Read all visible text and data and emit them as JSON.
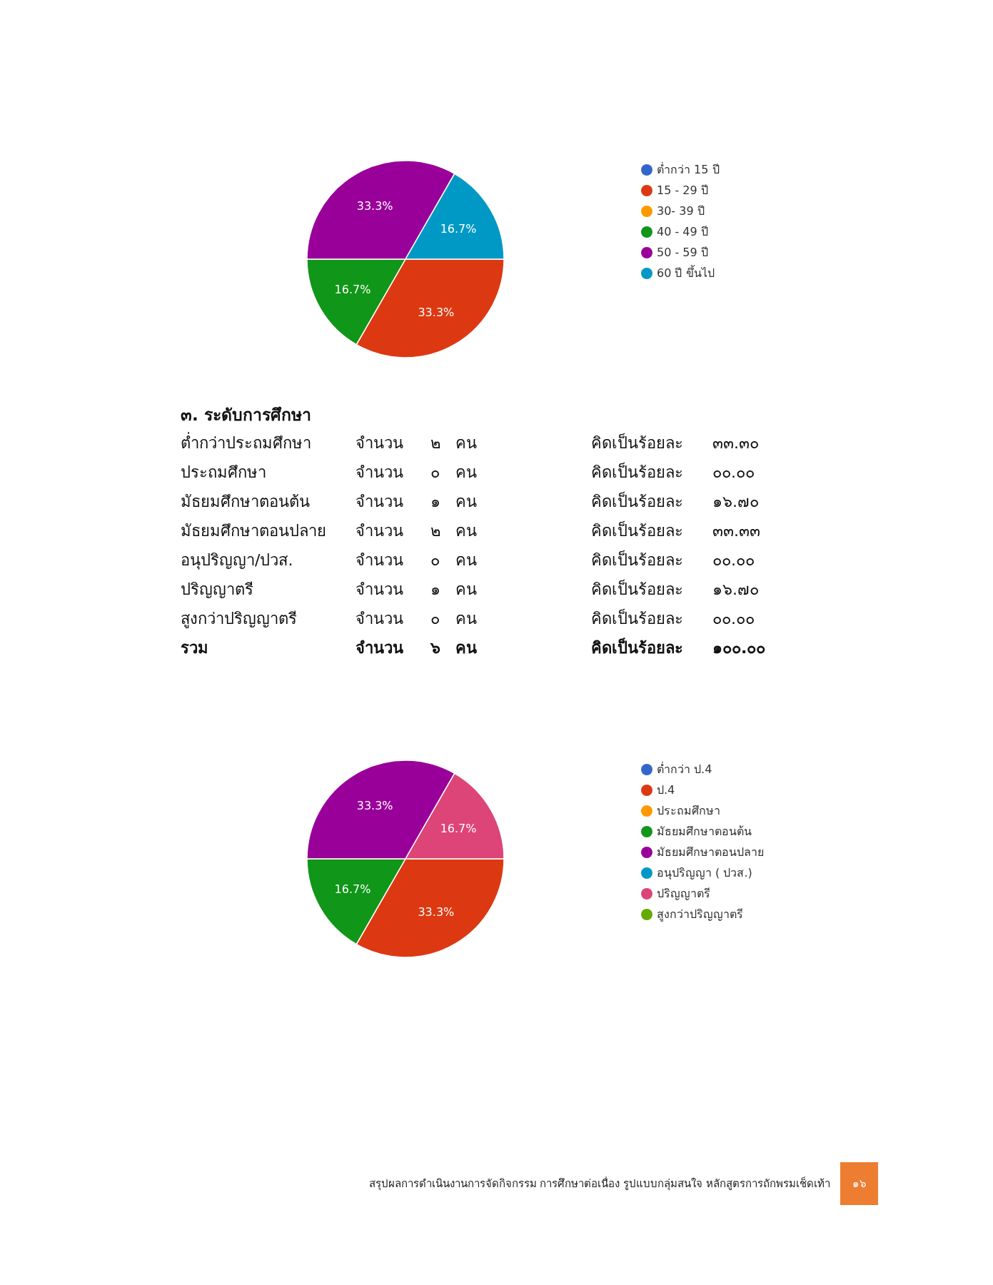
{
  "chart_data": [
    {
      "type": "pie",
      "categories": [
        "ต่ำกว่า 15 ปี",
        "15 - 29 ปี",
        "30- 39 ปี",
        "40 - 49 ปี",
        "50 - 59 ปี",
        "60 ปี ขึ้นไป"
      ],
      "values": [
        0,
        33.3,
        0,
        16.7,
        33.3,
        16.7
      ],
      "colors": [
        "#3366cc",
        "#dc3912",
        "#ff9900",
        "#109618",
        "#990099",
        "#0099c6"
      ],
      "value_labels": [
        null,
        "33.3%",
        null,
        "16.7%",
        "33.3%",
        "16.7%"
      ],
      "legend": "right"
    },
    {
      "type": "other",
      "title": "๓. ระดับการศึกษา",
      "annotations": [
        "ต่ำกว่าประถมศึกษา",
        "จำนวน",
        "๒",
        "คน",
        "คิดเป็นร้อยละ",
        "๓๓.๓๐",
        "ประถมศึกษา",
        "จำนวน",
        "๐",
        "คน",
        "คิดเป็นร้อยละ",
        "๐๐.๐๐",
        "มัธยมศึกษาตอนต้น",
        "จำนวน",
        "๑",
        "คน",
        "คิดเป็นร้อยละ",
        "๑๖.๗๐",
        "มัธยมศึกษาตอนปลาย",
        "จำนวน",
        "๒",
        "คน",
        "คิดเป็นร้อยละ",
        "๓๓.๓๓",
        "อนุปริญญา/ปวส.",
        "จำนวน",
        "๐",
        "คน",
        "คิดเป็นร้อยละ",
        "๐๐.๐๐",
        "ปริญญาตรี",
        "จำนวน",
        "๑",
        "คน",
        "คิดเป็นร้อยละ",
        "๑๖.๗๐",
        "สูงกว่าปริญญาตรี",
        "จำนวน",
        "๐",
        "คน",
        "คิดเป็นร้อยละ",
        "๐๐.๐๐",
        "รวม",
        "จำนวน",
        "๖",
        "คน",
        "คิดเป็นร้อยละ",
        "๑๐๐.๐๐"
      ]
    },
    {
      "type": "pie",
      "categories": [
        "ต่ำกว่า ป.4",
        "ป.4",
        "ประถมศึกษา",
        "มัธยมศึกษาตอนต้น",
        "มัธยมศึกษาตอนปลาย",
        "อนุปริญญา ( ปวส.)",
        "ปริญญาตรี",
        "สูงกว่าปริญญาตรี"
      ],
      "values": [
        0,
        33.3,
        0,
        16.7,
        33.3,
        0,
        16.7,
        0
      ],
      "colors": [
        "#3366cc",
        "#dc3912",
        "#ff9900",
        "#109618",
        "#990099",
        "#0099c6",
        "#dd4477",
        "#66aa00"
      ],
      "value_labels": [
        null,
        "33.3%",
        null,
        "16.7%",
        "33.3%",
        null,
        "16.7%",
        null
      ],
      "legend": "right",
      "annotations": [
        "สรุปผลการดำเนินงานการจัดกิจกรรม การศึกษาต่อเนื่อง รูปแบบกลุ่มสนใจ หลักสูตรการถักพรมเช็ดเท้า",
        "๑๖"
      ]
    }
  ]
}
